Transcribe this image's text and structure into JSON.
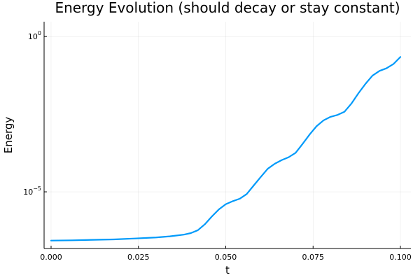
{
  "chart_data": {
    "type": "line",
    "title": "Energy Evolution (should decay or stay constant)",
    "xlabel": "t",
    "ylabel": "Energy",
    "xlim": [
      -0.002,
      0.103
    ],
    "ylim": [
      1.5e-07,
      3.0
    ],
    "y_scale": "log",
    "x_ticks": [
      0.0,
      0.025,
      0.05,
      0.075,
      0.1
    ],
    "x_tick_labels": [
      "0.000",
      "0.025",
      "0.050",
      "0.075",
      "0.100"
    ],
    "y_ticks": [
      1e-05,
      1.0
    ],
    "y_tick_labels": [
      {
        "base": "10",
        "exponent": "−5"
      },
      {
        "base": "10",
        "exponent": "0"
      }
    ],
    "grid": true,
    "legend": "none",
    "series": [
      {
        "color": "#009AFA",
        "x": [
          0.0,
          0.006,
          0.012,
          0.018,
          0.024,
          0.03,
          0.034,
          0.038,
          0.04,
          0.042,
          0.044,
          0.046,
          0.048,
          0.05,
          0.052,
          0.054,
          0.056,
          0.058,
          0.06,
          0.062,
          0.064,
          0.066,
          0.068,
          0.07,
          0.072,
          0.074,
          0.076,
          0.078,
          0.08,
          0.082,
          0.084,
          0.086,
          0.088,
          0.09,
          0.092,
          0.094,
          0.096,
          0.098,
          0.1
        ],
        "y": [
          2.7e-07,
          2.75e-07,
          2.85e-07,
          2.95e-07,
          3.15e-07,
          3.4e-07,
          3.7e-07,
          4.2e-07,
          4.7e-07,
          5.8e-07,
          9e-07,
          1.6e-06,
          2.7e-06,
          4e-06,
          5e-06,
          6e-06,
          8.5e-06,
          1.6e-05,
          3e-05,
          5.5e-05,
          8e-05,
          0.000105,
          0.00013,
          0.00018,
          0.00035,
          0.0007,
          0.0013,
          0.002,
          0.0026,
          0.003,
          0.0038,
          0.007,
          0.015,
          0.03,
          0.055,
          0.078,
          0.095,
          0.13,
          0.22
        ]
      }
    ]
  }
}
